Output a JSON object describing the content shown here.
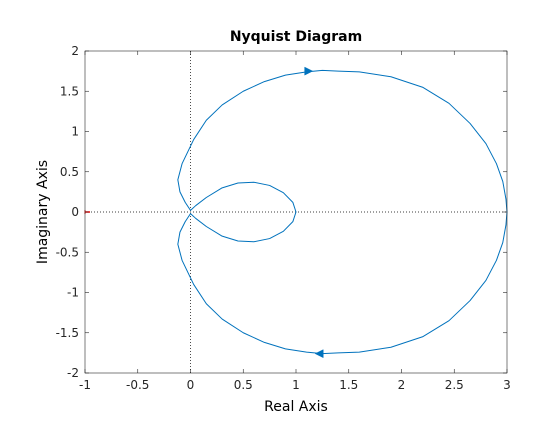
{
  "chart_data": {
    "type": "line",
    "title": "Nyquist Diagram",
    "xlabel": "Real Axis",
    "ylabel": "Imaginary Axis",
    "xlim": [
      -1,
      3
    ],
    "ylim": [
      -2,
      2
    ],
    "xticks": [
      -1,
      -0.5,
      0,
      0.5,
      1,
      1.5,
      2,
      2.5,
      3
    ],
    "yticks": [
      -2,
      -1.5,
      -1,
      -0.5,
      0,
      0.5,
      1,
      1.5,
      2
    ],
    "xtick_labels": [
      "-1",
      "-0.5",
      "0",
      "0.5",
      "1",
      "1.5",
      "2",
      "2.5",
      "3"
    ],
    "ytick_labels": [
      "-2",
      "-1.5",
      "-1",
      "-0.5",
      "0",
      "0.5",
      "1",
      "1.5",
      "2"
    ],
    "grid": false,
    "zero_reference_lines": "dotted",
    "critical_point": {
      "x": -1,
      "y": 0,
      "marker": "+",
      "color": "#ff0000"
    },
    "series": [
      {
        "color": "#0072bd",
        "points": [
          [
            3.0,
            0.0
          ],
          [
            2.99,
            -0.16
          ],
          [
            2.96,
            -0.38
          ],
          [
            2.9,
            -0.6
          ],
          [
            2.8,
            -0.85
          ],
          [
            2.65,
            -1.1
          ],
          [
            2.45,
            -1.35
          ],
          [
            2.2,
            -1.55
          ],
          [
            1.9,
            -1.68
          ],
          [
            1.6,
            -1.74
          ],
          [
            1.4,
            -1.75
          ],
          [
            1.25,
            -1.76
          ],
          [
            1.1,
            -1.74
          ],
          [
            0.9,
            -1.7
          ],
          [
            0.7,
            -1.62
          ],
          [
            0.5,
            -1.5
          ],
          [
            0.3,
            -1.33
          ],
          [
            0.15,
            -1.14
          ],
          [
            0.03,
            -0.9
          ],
          [
            -0.08,
            -0.6
          ],
          [
            -0.12,
            -0.4
          ],
          [
            -0.1,
            -0.25
          ],
          [
            -0.05,
            -0.12
          ],
          [
            0.0,
            -0.02
          ],
          [
            0.05,
            -0.08
          ],
          [
            0.15,
            -0.18
          ],
          [
            0.3,
            -0.3
          ],
          [
            0.45,
            -0.36
          ],
          [
            0.6,
            -0.37
          ],
          [
            0.75,
            -0.33
          ],
          [
            0.88,
            -0.24
          ],
          [
            0.97,
            -0.12
          ],
          [
            1.0,
            0.0
          ],
          [
            0.97,
            0.12
          ],
          [
            0.88,
            0.24
          ],
          [
            0.75,
            0.33
          ],
          [
            0.6,
            0.37
          ],
          [
            0.45,
            0.36
          ],
          [
            0.3,
            0.3
          ],
          [
            0.15,
            0.18
          ],
          [
            0.05,
            0.08
          ],
          [
            0.0,
            0.02
          ],
          [
            -0.05,
            0.12
          ],
          [
            -0.1,
            0.25
          ],
          [
            -0.12,
            0.4
          ],
          [
            -0.08,
            0.6
          ],
          [
            0.03,
            0.9
          ],
          [
            0.15,
            1.14
          ],
          [
            0.3,
            1.33
          ],
          [
            0.5,
            1.5
          ],
          [
            0.7,
            1.62
          ],
          [
            0.9,
            1.7
          ],
          [
            1.1,
            1.74
          ],
          [
            1.25,
            1.76
          ],
          [
            1.4,
            1.75
          ],
          [
            1.6,
            1.74
          ],
          [
            1.9,
            1.68
          ],
          [
            2.2,
            1.55
          ],
          [
            2.45,
            1.35
          ],
          [
            2.65,
            1.1
          ],
          [
            2.8,
            0.85
          ],
          [
            2.9,
            0.6
          ],
          [
            2.96,
            0.38
          ],
          [
            2.99,
            0.16
          ],
          [
            3.0,
            0.0
          ]
        ],
        "arrows": [
          {
            "x": 1.12,
            "y": 1.75,
            "direction": "right"
          },
          {
            "x": 1.22,
            "y": -1.76,
            "direction": "left"
          }
        ]
      }
    ]
  }
}
